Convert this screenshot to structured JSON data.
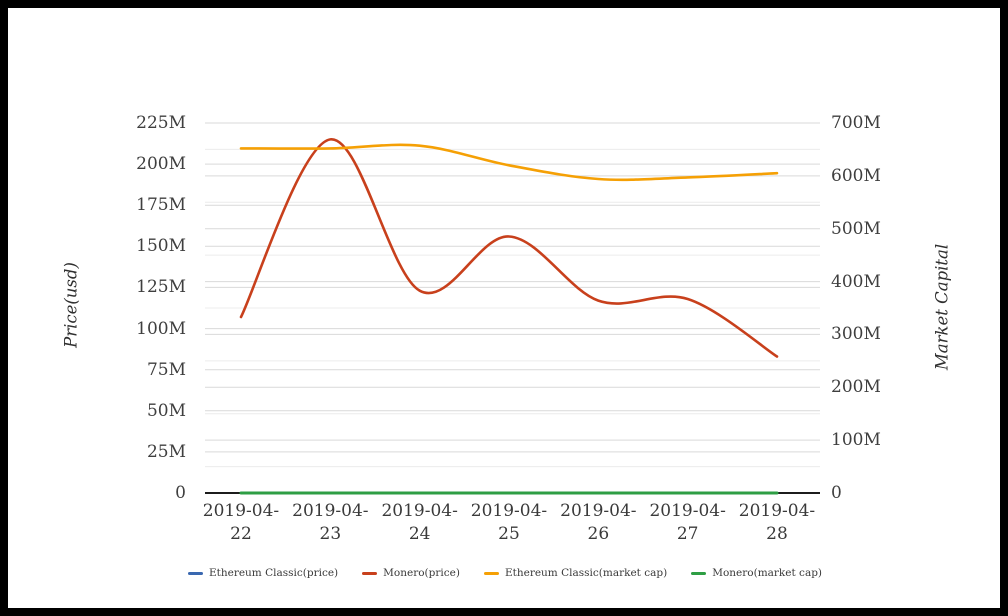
{
  "chart_data": {
    "type": "line",
    "title": "",
    "x": [
      "2019-04-22",
      "2019-04-23",
      "2019-04-24",
      "2019-04-25",
      "2019-04-26",
      "2019-04-27",
      "2019-04-28"
    ],
    "axes": {
      "left": {
        "title": "Price(usd)",
        "unit": "millions",
        "min": 0,
        "max": 225,
        "tick_step": 25,
        "ticks": [
          "225M",
          "200M",
          "175M",
          "150M",
          "125M",
          "100M",
          "75M",
          "50M",
          "25M",
          "0"
        ]
      },
      "right": {
        "title": "Market Capital",
        "unit": "millions",
        "min": 0,
        "max": 700,
        "tick_step": 100,
        "minor_step": 50,
        "ticks": [
          "700M",
          "600M",
          "500M",
          "400M",
          "300M",
          "200M",
          "100M",
          "0"
        ]
      }
    },
    "series": [
      {
        "name": "Ethereum Classic(price)",
        "axis": "left",
        "color": "#3a68b0",
        "width": 2.4,
        "values_millions": [
          0,
          0,
          0,
          0,
          0,
          0,
          0
        ]
      },
      {
        "name": "Monero(price)",
        "axis": "left",
        "color": "#c8401c",
        "width": 2.6,
        "values_millions": [
          107,
          215,
          123,
          156,
          117,
          118,
          83
        ]
      },
      {
        "name": "Ethereum Classic(market cap)",
        "axis": "right",
        "color": "#f5a005",
        "width": 2.6,
        "values_millions": [
          652,
          652,
          657,
          620,
          594,
          597,
          605
        ]
      },
      {
        "name": "Monero(market cap)",
        "axis": "right",
        "color": "#2e9e44",
        "width": 3,
        "values_millions": [
          0,
          0,
          0,
          0,
          0,
          0,
          0
        ]
      }
    ],
    "grid": {
      "major_color": "#d9d9d9",
      "minor_color": "#ececec",
      "axis_line_color": "#1c1c1c"
    },
    "legend_position": "bottom"
  },
  "frame": {
    "border_color": "#000000",
    "background": "#ffffff"
  }
}
